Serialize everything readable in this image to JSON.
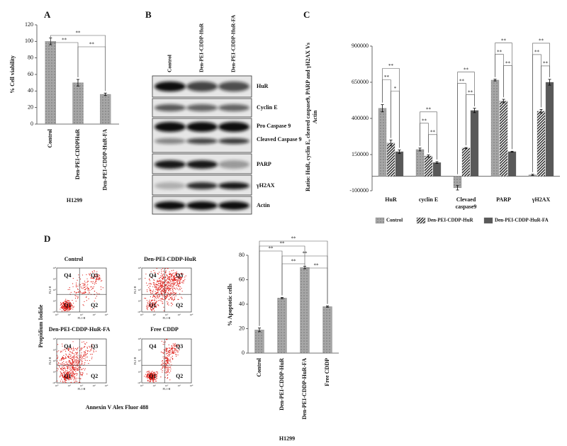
{
  "panel_labels": [
    "A",
    "B",
    "C",
    "D"
  ],
  "chart_data": [
    {
      "type": "bar",
      "y_label": "% Cell viability",
      "x_label": "H1299",
      "categories": [
        "Control",
        "Den-PEI-CDDPHuR",
        "Den-PEI-CDDP-HuR-FA"
      ],
      "series": [
        {
          "color": "#a6a6a6",
          "pattern": "dots",
          "values": [
            100,
            50,
            36
          ],
          "errors": [
            4,
            4,
            1.5
          ]
        }
      ],
      "ylim": [
        0,
        120
      ],
      "yticks": [
        0,
        20,
        40,
        60,
        80,
        100,
        120
      ],
      "significance": [
        "**",
        "**",
        "**"
      ]
    },
    {
      "type": "bar",
      "y_label": "Ratio: HuR, cyclin E, cleaved caspase9, PARP and γH2AX Vs Actin",
      "categories": [
        "HuR",
        "cyclin E",
        "Clevaed caspase9",
        "PARP",
        "γH2AX"
      ],
      "series": [
        {
          "name": "Control",
          "color": "#a6a6a6",
          "pattern": "dots",
          "values": [
            470000,
            185000,
            -80000,
            665000,
            10000
          ],
          "errors": [
            25000,
            10000,
            15000,
            6000,
            4000
          ]
        },
        {
          "name": "Den-PEI-CDDP-HuR",
          "color": "#222222",
          "pattern": "stripes",
          "values": [
            230000,
            140000,
            195000,
            520000,
            450000
          ],
          "errors": [
            20000,
            8000,
            4000,
            12000,
            12000
          ]
        },
        {
          "name": "Den-PEI-CDDP-HuR-FA",
          "color": "#595959",
          "pattern": "solid",
          "values": [
            170000,
            95000,
            455000,
            170000,
            650000
          ],
          "errors": [
            12000,
            6000,
            15000,
            3000,
            20000
          ]
        }
      ],
      "ylim": [
        -100000,
        900000
      ],
      "yticks": [
        -100000,
        150000,
        400000,
        650000,
        900000
      ],
      "significance": [
        [
          "**",
          "**",
          "*"
        ],
        [
          "**",
          "**",
          "**"
        ],
        [
          "**",
          "**",
          "**"
        ],
        [
          "**",
          "**",
          "**"
        ],
        [
          "**",
          "**",
          "**"
        ]
      ],
      "legend": "bottom"
    },
    {
      "type": "bar",
      "y_label": "% Apoptotic cells",
      "x_label": "H1299",
      "categories": [
        "Control",
        "Den-PEI-CDDP-HuR",
        "Den-PEI-CDDP-HuR-FA",
        "Free CDDP"
      ],
      "series": [
        {
          "color": "#a6a6a6",
          "pattern": "dots",
          "values": [
            19,
            45,
            70,
            38
          ],
          "errors": [
            1.5,
            0.5,
            1,
            0.5
          ]
        }
      ],
      "ylim": [
        0,
        80
      ],
      "yticks": [
        0,
        20,
        40,
        60,
        80
      ],
      "significance": [
        "**",
        "**",
        "**",
        "**",
        "**",
        "**"
      ]
    }
  ],
  "blot": {
    "columns": [
      "Control",
      "Den-PEI-CDDP-HuR",
      "Den-PEI-CDDP-HuR-FA"
    ],
    "rows": [
      "HuR",
      "Cyclin E",
      "Pro Caspase 9",
      "Cleaved Caspase 9",
      "PARP",
      "γH2AX",
      "Actin"
    ]
  },
  "flow": {
    "titles": [
      "Control",
      "Den-PEI-CDDP-HuR",
      "Den-PEI-CDDP-HuR-FA",
      "Free CDDP"
    ],
    "quadrants": [
      "Q1",
      "Q2",
      "Q3",
      "Q4"
    ],
    "y_label": "Propidium Iodide",
    "x_label": "Annexin V Alex Fluor 488",
    "axis_y": "FL2-H",
    "axis_x": "FL1-H",
    "ticks": [
      "10⁰",
      "10¹",
      "10²",
      "10³",
      "10⁴"
    ]
  }
}
